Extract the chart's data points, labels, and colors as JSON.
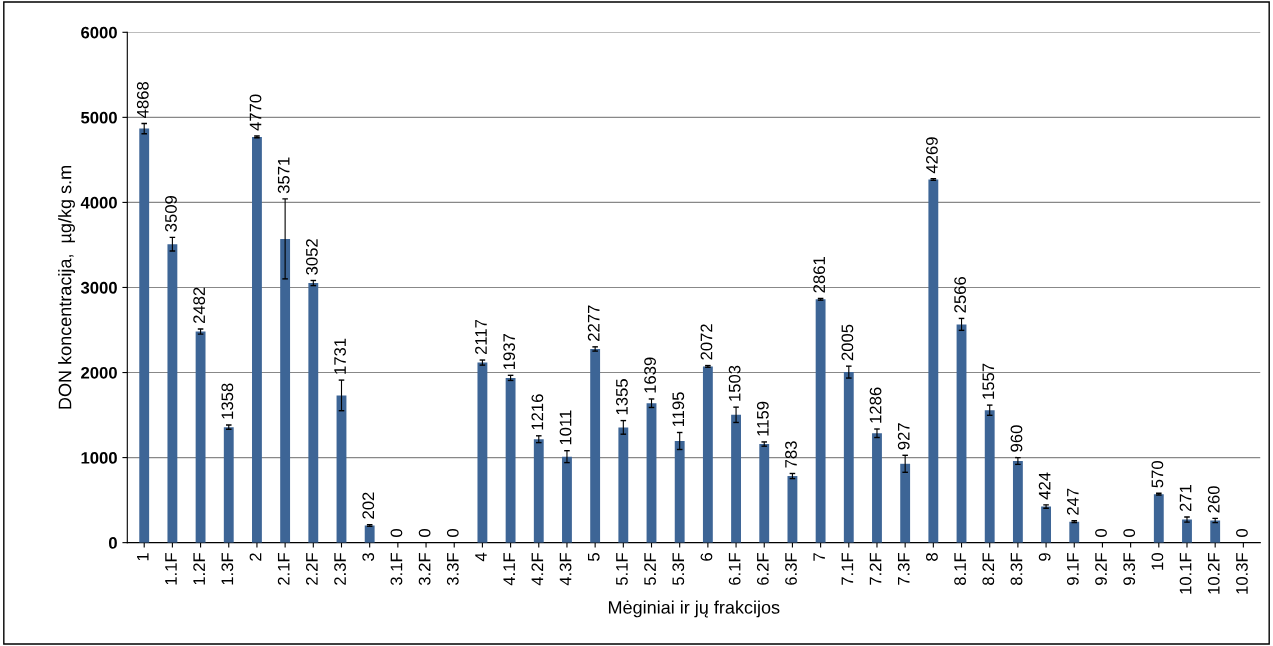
{
  "chart_data": {
    "type": "bar",
    "xlabel": "Mėginiai ir jų frakcijos",
    "ylabel": "DON koncentracija,  µg/kg s.m",
    "categories": [
      "1",
      "1.1F",
      "1.2F",
      "1.3F",
      "2",
      "2.1F",
      "2.2F",
      "2.3F",
      "3",
      "3.1F",
      "3.2F",
      "3.3F",
      "4",
      "4.1F",
      "4.2F",
      "4.3F",
      "5",
      "5.1F",
      "5.2F",
      "5.3F",
      "6",
      "6.1F",
      "6.2F",
      "6.3F",
      "7",
      "7.1F",
      "7.2F",
      "7.3F",
      "8",
      "8.1F",
      "8.2F",
      "8.3F",
      "9",
      "9.1F",
      "9.2F",
      "9.3F",
      "10",
      "10.1F",
      "10.2F",
      "10.3F"
    ],
    "values": [
      4868,
      3509,
      2482,
      1358,
      4770,
      3571,
      3052,
      1731,
      202,
      0,
      0,
      0,
      2117,
      1937,
      1216,
      1011,
      2277,
      1355,
      1639,
      1195,
      2072,
      1503,
      1159,
      783,
      2861,
      2005,
      1286,
      927,
      4269,
      2566,
      1557,
      960,
      424,
      247,
      0,
      0,
      570,
      271,
      260,
      0
    ],
    "errors": [
      60,
      80,
      30,
      25,
      10,
      470,
      30,
      180,
      10,
      null,
      null,
      null,
      30,
      30,
      40,
      70,
      25,
      80,
      50,
      100,
      10,
      90,
      25,
      30,
      10,
      70,
      50,
      100,
      10,
      70,
      60,
      40,
      20,
      10,
      null,
      null,
      10,
      30,
      25,
      null
    ],
    "color": "#3d6596",
    "ylim": [
      0,
      6000
    ],
    "yticks": [
      0,
      1000,
      2000,
      3000,
      4000,
      5000,
      6000
    ],
    "grid": "y",
    "data_labels": true
  }
}
